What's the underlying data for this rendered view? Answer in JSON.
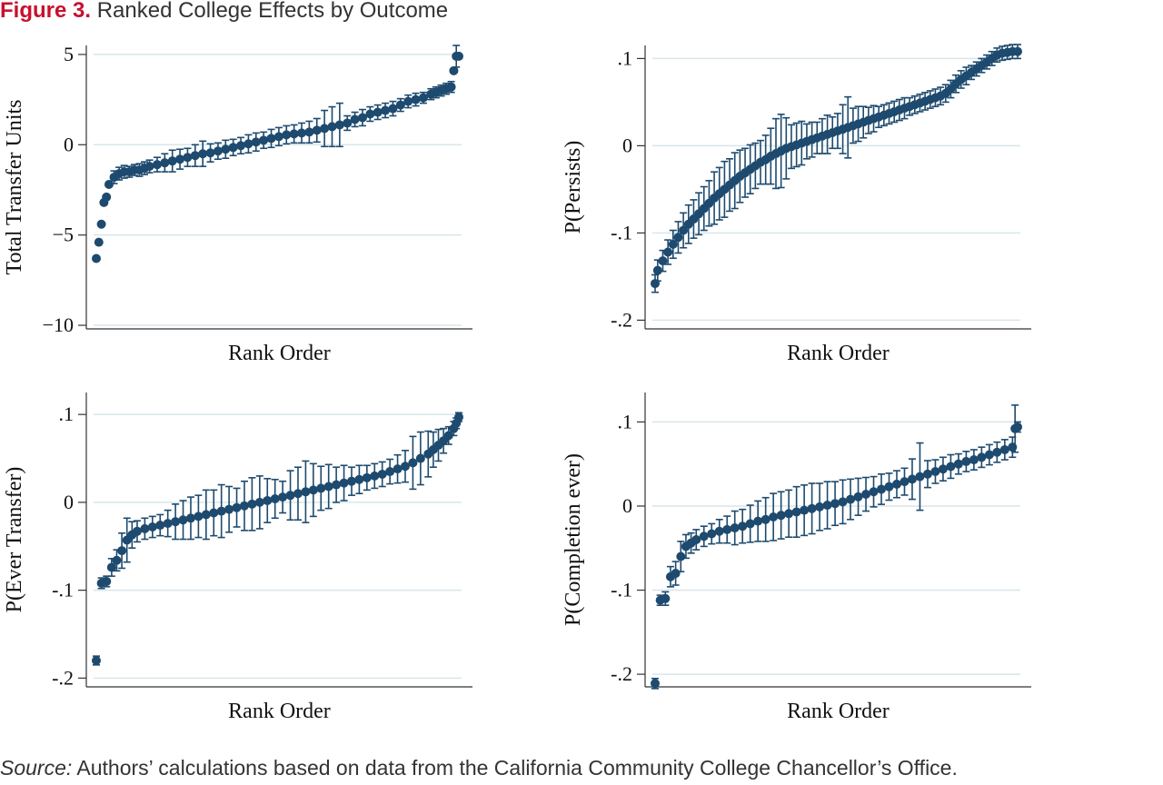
{
  "figure": {
    "label": "Figure 3.",
    "title": "Ranked College Effects by Outcome",
    "source_label": "Source:",
    "source_text": " Authors’ calculations based on data from the California Community College Chancellor’s Office."
  },
  "colors": {
    "marker": "#1d4a6e",
    "grid": "#d8e6ea",
    "axis": "#333333",
    "title_accent": "#c8102e"
  },
  "chart_data": [
    {
      "type": "scatter",
      "title": "",
      "xlabel": "Rank Order",
      "ylabel": "Total Transfer Units",
      "ylim": [
        -10.2,
        5.5
      ],
      "yticks": [
        5,
        0,
        -5,
        -10
      ],
      "yticklabels": [
        "5",
        "0",
        "−5",
        "−10"
      ],
      "grid": true,
      "x": [
        1,
        2,
        3,
        4,
        5,
        6,
        8,
        10,
        12,
        14,
        16,
        18,
        20,
        22,
        25,
        28,
        31,
        34,
        37,
        40,
        43,
        46,
        49,
        52,
        55,
        58,
        61,
        64,
        67,
        70,
        73,
        76,
        79,
        82,
        85,
        88,
        91,
        94,
        97,
        100,
        103,
        106,
        109,
        112,
        115,
        118,
        121,
        124,
        127,
        130,
        133,
        135,
        137,
        139,
        141,
        142,
        143,
        144
      ],
      "y": [
        -6.3,
        -5.4,
        -4.4,
        -3.2,
        -2.9,
        -2.2,
        -1.8,
        -1.6,
        -1.5,
        -1.5,
        -1.4,
        -1.4,
        -1.3,
        -1.2,
        -1.1,
        -1.0,
        -0.9,
        -0.8,
        -0.7,
        -0.6,
        -0.5,
        -0.45,
        -0.35,
        -0.25,
        -0.15,
        -0.05,
        0.05,
        0.15,
        0.25,
        0.35,
        0.45,
        0.55,
        0.6,
        0.65,
        0.7,
        0.8,
        0.9,
        1.0,
        1.1,
        1.2,
        1.4,
        1.5,
        1.7,
        1.8,
        1.9,
        2.0,
        2.2,
        2.4,
        2.5,
        2.6,
        2.8,
        2.9,
        3.0,
        3.1,
        3.2,
        4.1,
        4.9,
        4.9
      ],
      "error": [
        0,
        0,
        0,
        0,
        0,
        0,
        0.35,
        0.35,
        0.35,
        0.3,
        0.3,
        0.35,
        0.35,
        0.35,
        0.4,
        0.5,
        0.6,
        0.55,
        0.5,
        0.6,
        0.7,
        0.5,
        0.45,
        0.5,
        0.45,
        0.45,
        0.5,
        0.5,
        0.45,
        0.5,
        0.5,
        0.5,
        0.5,
        0.55,
        0.6,
        0.65,
        1.0,
        1.1,
        1.2,
        0.4,
        0.4,
        0.45,
        0.4,
        0.4,
        0.4,
        0.4,
        0.35,
        0.35,
        0.35,
        0.3,
        0.3,
        0.3,
        0.3,
        0.3,
        0.3,
        0,
        0.6,
        0
      ]
    },
    {
      "type": "scatter",
      "title": "",
      "xlabel": "Rank Order",
      "ylabel": "P(Persists)",
      "ylim": [
        -0.21,
        0.115
      ],
      "yticks": [
        0.1,
        0,
        -0.1,
        -0.2
      ],
      "yticklabels": [
        ".1",
        "0",
        "-.1",
        "-.2"
      ],
      "grid": true,
      "x": [
        1,
        2,
        4,
        6,
        8,
        10,
        12,
        14,
        16,
        18,
        20,
        22,
        24,
        26,
        28,
        30,
        32,
        34,
        36,
        38,
        40,
        42,
        44,
        46,
        48,
        50,
        52,
        54,
        56,
        58,
        60,
        62,
        64,
        66,
        68,
        70,
        72,
        74,
        76,
        78,
        80,
        82,
        84,
        86,
        88,
        90,
        92,
        94,
        96,
        98,
        100,
        102,
        104,
        106,
        108,
        110,
        112,
        114,
        116,
        118,
        120,
        122,
        124,
        126,
        128,
        130,
        132,
        134,
        136,
        138,
        140,
        142
      ],
      "y": [
        -0.158,
        -0.143,
        -0.132,
        -0.122,
        -0.113,
        -0.105,
        -0.097,
        -0.09,
        -0.084,
        -0.078,
        -0.072,
        -0.066,
        -0.06,
        -0.055,
        -0.05,
        -0.045,
        -0.04,
        -0.035,
        -0.031,
        -0.027,
        -0.023,
        -0.019,
        -0.016,
        -0.012,
        -0.009,
        -0.006,
        -0.003,
        -0.001,
        0.001,
        0.003,
        0.005,
        0.007,
        0.009,
        0.011,
        0.013,
        0.015,
        0.017,
        0.019,
        0.021,
        0.023,
        0.025,
        0.027,
        0.029,
        0.031,
        0.033,
        0.035,
        0.037,
        0.039,
        0.041,
        0.043,
        0.045,
        0.047,
        0.049,
        0.051,
        0.053,
        0.055,
        0.057,
        0.06,
        0.065,
        0.071,
        0.076,
        0.08,
        0.084,
        0.088,
        0.092,
        0.096,
        0.1,
        0.104,
        0.106,
        0.107,
        0.108,
        0.108
      ],
      "error": [
        0.01,
        0.012,
        0.012,
        0.014,
        0.016,
        0.018,
        0.02,
        0.022,
        0.022,
        0.024,
        0.025,
        0.026,
        0.03,
        0.03,
        0.032,
        0.03,
        0.032,
        0.03,
        0.028,
        0.028,
        0.026,
        0.025,
        0.028,
        0.032,
        0.04,
        0.042,
        0.035,
        0.025,
        0.025,
        0.025,
        0.02,
        0.02,
        0.018,
        0.02,
        0.022,
        0.018,
        0.02,
        0.028,
        0.035,
        0.02,
        0.02,
        0.018,
        0.015,
        0.015,
        0.012,
        0.012,
        0.012,
        0.012,
        0.012,
        0.012,
        0.01,
        0.01,
        0.01,
        0.01,
        0.01,
        0.01,
        0.01,
        0.01,
        0.01,
        0.01,
        0.01,
        0.01,
        0.008,
        0.008,
        0.008,
        0.008,
        0.008,
        0.008,
        0.008,
        0.008,
        0.008,
        0.008
      ]
    },
    {
      "type": "scatter",
      "title": "",
      "xlabel": "Rank Order",
      "ylabel": "P(Ever Transfer)",
      "ylim": [
        -0.21,
        0.125
      ],
      "yticks": [
        0.1,
        0,
        -0.1,
        -0.2
      ],
      "yticklabels": [
        ".1",
        "0",
        "-.1",
        "-.2"
      ],
      "grid": true,
      "x": [
        1,
        3,
        5,
        7,
        9,
        11,
        13,
        15,
        17,
        20,
        23,
        26,
        29,
        32,
        35,
        38,
        41,
        44,
        47,
        50,
        53,
        56,
        59,
        62,
        65,
        68,
        71,
        74,
        77,
        80,
        83,
        86,
        89,
        92,
        95,
        98,
        101,
        104,
        107,
        110,
        113,
        116,
        119,
        122,
        125,
        128,
        131,
        133,
        135,
        137,
        139,
        141,
        142,
        143
      ],
      "y": [
        -0.18,
        -0.092,
        -0.09,
        -0.074,
        -0.066,
        -0.055,
        -0.043,
        -0.037,
        -0.033,
        -0.03,
        -0.028,
        -0.026,
        -0.024,
        -0.022,
        -0.02,
        -0.018,
        -0.016,
        -0.014,
        -0.012,
        -0.01,
        -0.008,
        -0.006,
        -0.004,
        -0.002,
        0.0,
        0.002,
        0.004,
        0.006,
        0.008,
        0.01,
        0.012,
        0.014,
        0.016,
        0.018,
        0.02,
        0.022,
        0.024,
        0.026,
        0.028,
        0.03,
        0.032,
        0.035,
        0.038,
        0.041,
        0.045,
        0.05,
        0.055,
        0.06,
        0.065,
        0.07,
        0.076,
        0.084,
        0.09,
        0.097
      ],
      "error": [
        0.005,
        0.006,
        0.006,
        0.01,
        0.012,
        0.02,
        0.025,
        0.015,
        0.012,
        0.012,
        0.012,
        0.012,
        0.015,
        0.02,
        0.022,
        0.024,
        0.024,
        0.028,
        0.026,
        0.03,
        0.026,
        0.022,
        0.028,
        0.03,
        0.03,
        0.025,
        0.022,
        0.018,
        0.028,
        0.03,
        0.035,
        0.03,
        0.025,
        0.025,
        0.02,
        0.02,
        0.016,
        0.016,
        0.014,
        0.014,
        0.014,
        0.014,
        0.016,
        0.018,
        0.03,
        0.03,
        0.026,
        0.02,
        0.018,
        0.014,
        0.01,
        0.008,
        0.006,
        0.005
      ]
    },
    {
      "type": "scatter",
      "title": "",
      "xlabel": "Rank Order",
      "ylabel": "P(Completion ever)",
      "ylim": [
        -0.215,
        0.135
      ],
      "yticks": [
        0.1,
        0,
        -0.1,
        -0.2
      ],
      "yticklabels": [
        ".1",
        "0",
        "-.1",
        "-.2"
      ],
      "grid": true,
      "x": [
        1,
        3,
        5,
        7,
        9,
        11,
        13,
        15,
        17,
        20,
        23,
        26,
        29,
        32,
        35,
        38,
        41,
        44,
        47,
        50,
        53,
        56,
        59,
        62,
        65,
        68,
        71,
        74,
        77,
        80,
        83,
        86,
        89,
        92,
        95,
        98,
        101,
        104,
        107,
        110,
        113,
        116,
        119,
        122,
        125,
        128,
        131,
        134,
        137,
        140,
        141,
        142
      ],
      "y": [
        -0.211,
        -0.112,
        -0.11,
        -0.084,
        -0.08,
        -0.06,
        -0.048,
        -0.044,
        -0.04,
        -0.036,
        -0.033,
        -0.03,
        -0.028,
        -0.026,
        -0.024,
        -0.021,
        -0.018,
        -0.016,
        -0.013,
        -0.011,
        -0.009,
        -0.007,
        -0.005,
        -0.003,
        -0.001,
        0.001,
        0.003,
        0.005,
        0.008,
        0.011,
        0.014,
        0.017,
        0.02,
        0.023,
        0.026,
        0.029,
        0.032,
        0.035,
        0.038,
        0.041,
        0.044,
        0.047,
        0.05,
        0.053,
        0.055,
        0.058,
        0.061,
        0.064,
        0.067,
        0.07,
        0.092,
        0.094
      ],
      "error": [
        0.006,
        0.006,
        0.008,
        0.012,
        0.014,
        0.018,
        0.014,
        0.012,
        0.012,
        0.012,
        0.012,
        0.014,
        0.016,
        0.02,
        0.02,
        0.022,
        0.024,
        0.026,
        0.028,
        0.028,
        0.028,
        0.03,
        0.03,
        0.03,
        0.028,
        0.028,
        0.026,
        0.026,
        0.024,
        0.022,
        0.02,
        0.018,
        0.018,
        0.016,
        0.016,
        0.016,
        0.024,
        0.04,
        0.016,
        0.014,
        0.014,
        0.014,
        0.012,
        0.012,
        0.012,
        0.012,
        0.012,
        0.012,
        0.012,
        0.012,
        0.028,
        0.006
      ]
    }
  ]
}
